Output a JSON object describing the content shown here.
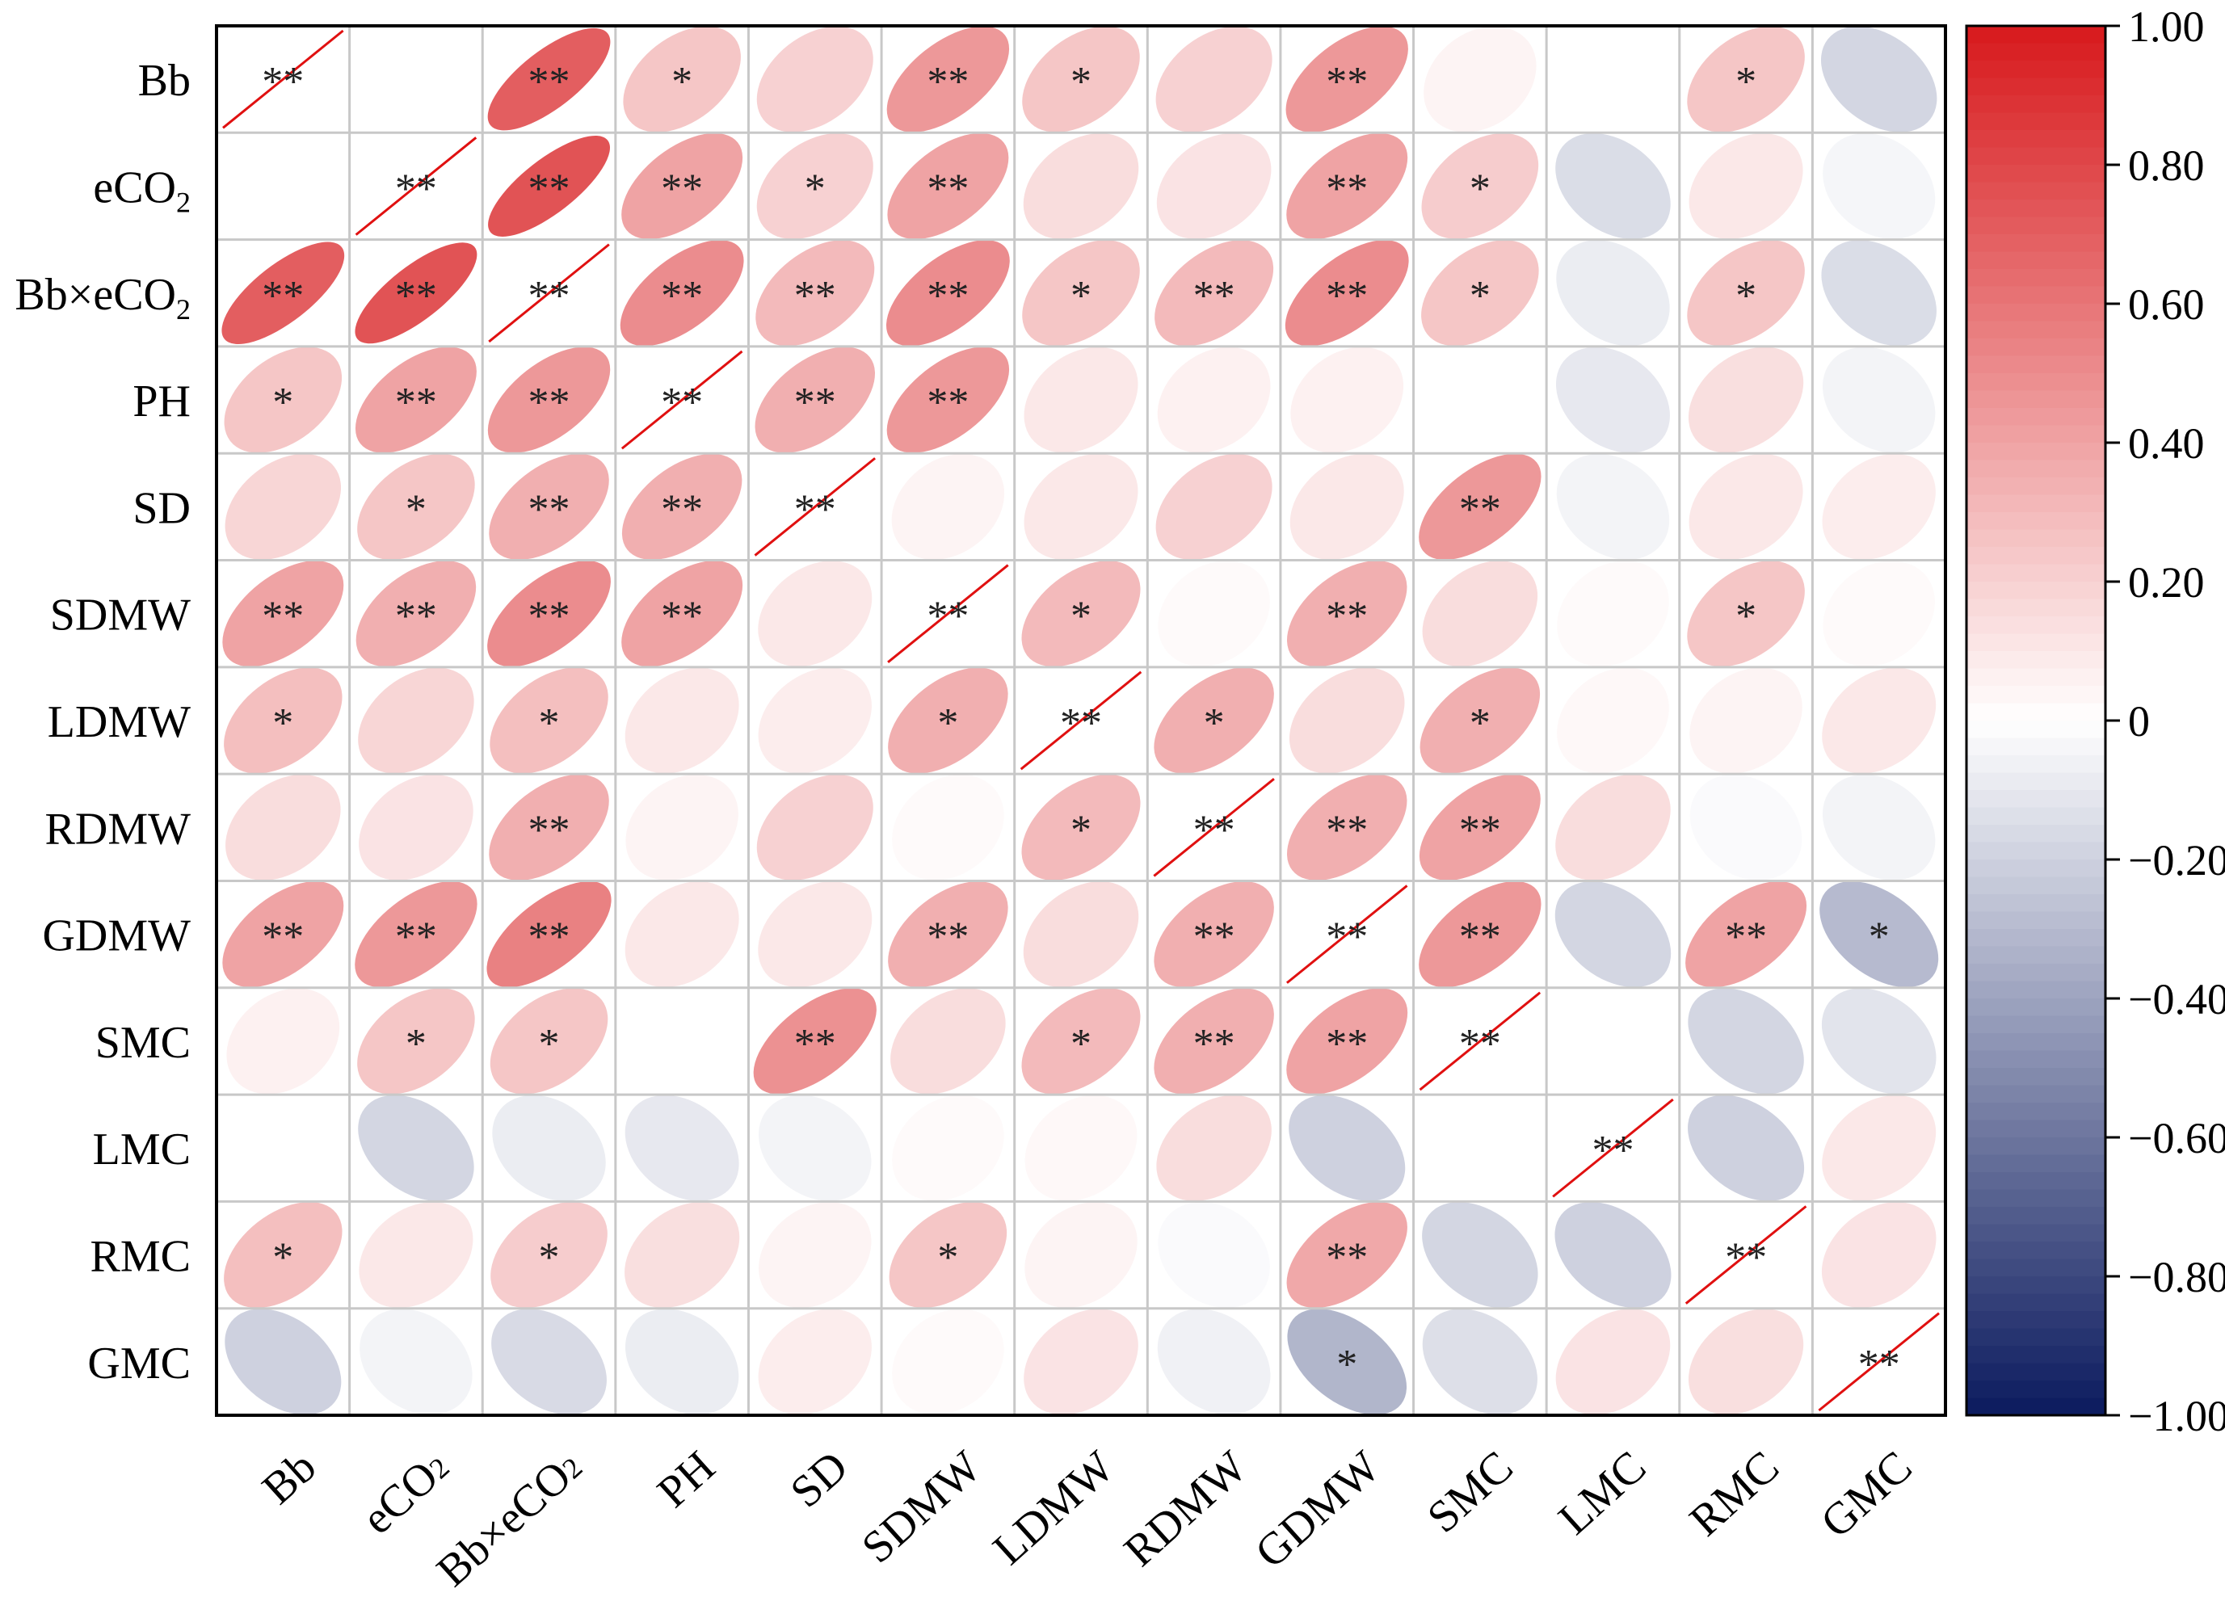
{
  "chart_data": {
    "type": "heatmap",
    "subtype": "correlation-ellipse-matrix",
    "variables": [
      {
        "main": "Bb",
        "sub": ""
      },
      {
        "main": "eCO",
        "sub": "2"
      },
      {
        "main": "Bb×eCO",
        "sub": "2"
      },
      {
        "main": "PH",
        "sub": ""
      },
      {
        "main": "SD",
        "sub": ""
      },
      {
        "main": "SDMW",
        "sub": ""
      },
      {
        "main": "LDMW",
        "sub": ""
      },
      {
        "main": "RDMW",
        "sub": ""
      },
      {
        "main": "GDMW",
        "sub": ""
      },
      {
        "main": "SMC",
        "sub": ""
      },
      {
        "main": "LMC",
        "sub": ""
      },
      {
        "main": "RMC",
        "sub": ""
      },
      {
        "main": "GMC",
        "sub": ""
      }
    ],
    "matrix": [
      [
        1.0,
        0.0,
        0.7,
        0.25,
        0.2,
        0.45,
        0.25,
        0.2,
        0.45,
        0.05,
        0.0,
        0.25,
        -0.18
      ],
      [
        0.0,
        1.0,
        0.75,
        0.4,
        0.2,
        0.4,
        0.15,
        0.12,
        0.4,
        0.22,
        -0.15,
        0.1,
        -0.04
      ],
      [
        0.7,
        0.75,
        1.0,
        0.5,
        0.3,
        0.5,
        0.25,
        0.3,
        0.5,
        0.25,
        -0.08,
        0.25,
        -0.15
      ],
      [
        0.25,
        0.4,
        0.45,
        1.0,
        0.35,
        0.45,
        0.1,
        0.06,
        0.06,
        0.0,
        -0.1,
        0.14,
        -0.05
      ],
      [
        0.18,
        0.25,
        0.35,
        0.35,
        1.0,
        0.05,
        0.1,
        0.2,
        0.1,
        0.45,
        -0.05,
        0.1,
        0.08
      ],
      [
        0.4,
        0.35,
        0.5,
        0.4,
        0.1,
        1.0,
        0.3,
        0.02,
        0.35,
        0.15,
        0.02,
        0.25,
        0.02
      ],
      [
        0.28,
        0.18,
        0.28,
        0.1,
        0.08,
        0.35,
        1.0,
        0.35,
        0.15,
        0.35,
        0.03,
        0.05,
        0.1
      ],
      [
        0.15,
        0.12,
        0.35,
        0.05,
        0.2,
        0.02,
        0.3,
        1.0,
        0.35,
        0.4,
        0.15,
        -0.02,
        -0.05
      ],
      [
        0.4,
        0.45,
        0.55,
        0.1,
        0.1,
        0.35,
        0.15,
        0.35,
        1.0,
        0.45,
        -0.18,
        0.4,
        -0.3
      ],
      [
        0.06,
        0.25,
        0.25,
        0.0,
        0.48,
        0.15,
        0.3,
        0.35,
        0.4,
        1.0,
        0.0,
        -0.18,
        -0.12
      ],
      [
        0.0,
        -0.18,
        -0.08,
        -0.1,
        -0.05,
        0.02,
        0.03,
        0.15,
        -0.2,
        0.0,
        1.0,
        -0.2,
        0.1
      ],
      [
        0.28,
        0.1,
        0.22,
        0.14,
        0.05,
        0.25,
        0.05,
        -0.02,
        0.38,
        -0.18,
        -0.2,
        1.0,
        0.12
      ],
      [
        -0.2,
        -0.05,
        -0.16,
        -0.08,
        0.08,
        0.02,
        0.12,
        -0.06,
        -0.32,
        -0.14,
        0.12,
        0.14,
        1.0
      ]
    ],
    "significance": [
      [
        "**",
        "",
        "**",
        "*",
        "",
        "**",
        "*",
        "",
        "**",
        "",
        "",
        "*",
        ""
      ],
      [
        "",
        "**",
        "**",
        "**",
        "*",
        "**",
        "",
        "",
        "**",
        "*",
        "",
        "",
        ""
      ],
      [
        "**",
        "**",
        "**",
        "**",
        "**",
        "**",
        "*",
        "**",
        "**",
        "*",
        "",
        "*",
        ""
      ],
      [
        "*",
        "**",
        "**",
        "**",
        "**",
        "**",
        "",
        "",
        "",
        "",
        "",
        "",
        ""
      ],
      [
        "",
        "*",
        "**",
        "**",
        "**",
        "",
        "",
        "",
        "",
        "**",
        "",
        "",
        ""
      ],
      [
        "**",
        "**",
        "**",
        "**",
        "",
        "**",
        "*",
        "",
        "**",
        "",
        "",
        "*",
        ""
      ],
      [
        "*",
        "",
        "*",
        "",
        "",
        "*",
        "**",
        "*",
        "",
        "*",
        "",
        "",
        ""
      ],
      [
        "",
        "",
        "**",
        "",
        "",
        "",
        "*",
        "**",
        "**",
        "**",
        "",
        "",
        ""
      ],
      [
        "**",
        "**",
        "**",
        "",
        "",
        "**",
        "",
        "**",
        "**",
        "**",
        "",
        "**",
        "*"
      ],
      [
        "",
        "*",
        "*",
        "",
        "**",
        "",
        "*",
        "**",
        "**",
        "**",
        "",
        "",
        ""
      ],
      [
        "",
        "",
        "",
        "",
        "",
        "",
        "",
        "",
        "",
        "",
        "**",
        "",
        ""
      ],
      [
        "*",
        "",
        "*",
        "",
        "",
        "*",
        "",
        "",
        "**",
        "",
        "",
        "**",
        ""
      ],
      [
        "",
        "",
        "",
        "",
        "",
        "",
        "",
        "",
        "*",
        "",
        "",
        "",
        "**"
      ]
    ],
    "colorbar": {
      "range": [
        -1,
        1
      ],
      "ticks": [
        "1.00",
        "0.80",
        "0.60",
        "0.40",
        "0.20",
        "0",
        "−0.20",
        "−0.40",
        "−0.60",
        "−0.80",
        "−1.00"
      ],
      "tick_values": [
        1.0,
        0.8,
        0.6,
        0.4,
        0.2,
        0,
        -0.2,
        -0.4,
        -0.6,
        -0.8,
        -1.0
      ],
      "colors": {
        "negative": "#0b1a5e",
        "mid": "#ffffff",
        "positive": "#d7191c"
      }
    },
    "diagonal_line_color": "#e01010",
    "grid_color": "#c8c8c8"
  }
}
